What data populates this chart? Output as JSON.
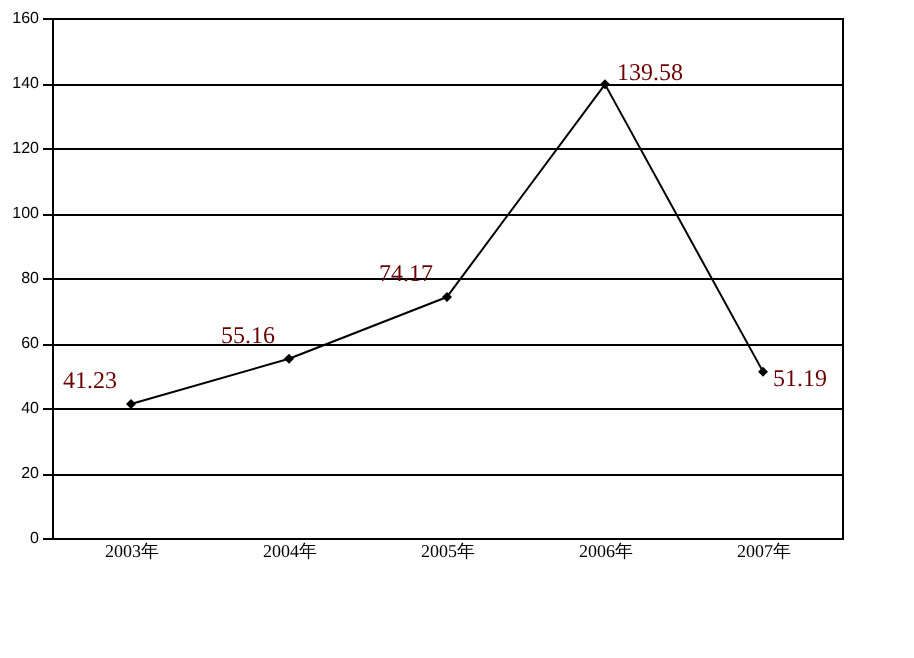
{
  "chart_data": {
    "type": "line",
    "categories": [
      "2003年",
      "2004年",
      "2005年",
      "2006年",
      "2007年"
    ],
    "series": [
      {
        "color": "#000000",
        "values": [
          41.23,
          55.16,
          74.17,
          139.58,
          51.19
        ]
      }
    ],
    "ylim": [
      0,
      160
    ],
    "yticks": [
      0,
      20,
      40,
      60,
      80,
      100,
      120,
      140,
      160
    ],
    "grid": "y",
    "marker": "diamond",
    "line_style": "solid",
    "data_labels": true
  }
}
